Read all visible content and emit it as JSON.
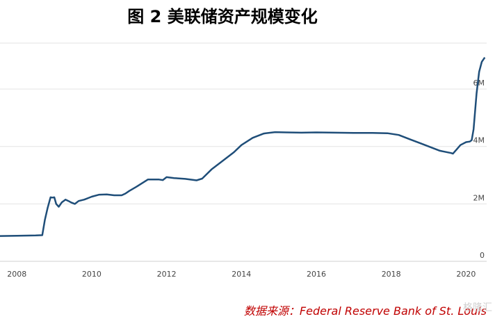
{
  "title": "图 2 美联储资产规模变化",
  "source": "数据来源：Federal Reserve Bank of St. Louis",
  "watermark": "格隆汇",
  "colors": {
    "line": "#1f4e79",
    "grid": "#e3e3e3",
    "axis_text": "#444444",
    "source_text": "#c00000"
  },
  "chart_data": {
    "type": "line",
    "title": "图 2 美联储资产规模变化",
    "xlabel": "",
    "ylabel": "",
    "xlim": [
      2007.55,
      2020.55
    ],
    "ylim": [
      0,
      7.6
    ],
    "x_ticks": [
      2008,
      2010,
      2012,
      2014,
      2016,
      2018,
      2020
    ],
    "x_tick_labels": [
      "2008",
      "2010",
      "2012",
      "2014",
      "2016",
      "2018",
      "2020"
    ],
    "y_ticks": [
      0,
      2,
      4,
      6
    ],
    "y_tick_labels": [
      "0",
      "2M",
      "4M",
      "6M"
    ],
    "grid": true,
    "series": [
      {
        "x": [
          2007.55,
          2008.0,
          2008.5,
          2008.68,
          2008.75,
          2008.82,
          2008.9,
          2008.95,
          2009.0,
          2009.05,
          2009.12,
          2009.2,
          2009.3,
          2009.38,
          2009.45,
          2009.55,
          2009.65,
          2009.8,
          2010.0,
          2010.2,
          2010.4,
          2010.6,
          2010.8,
          2010.9,
          2011.0,
          2011.2,
          2011.5,
          2011.8,
          2011.9,
          2012.0,
          2012.2,
          2012.5,
          2012.8,
          2012.95,
          2013.2,
          2013.5,
          2013.8,
          2014.0,
          2014.3,
          2014.6,
          2014.9,
          2015.2,
          2015.6,
          2016.0,
          2016.5,
          2017.0,
          2017.5,
          2017.9,
          2018.2,
          2018.5,
          2018.8,
          2019.0,
          2019.3,
          2019.6,
          2019.65,
          2019.75,
          2019.85,
          2020.0,
          2020.1,
          2020.15,
          2020.2,
          2020.28,
          2020.35,
          2020.42,
          2020.5
        ],
        "y": [
          0.88,
          0.89,
          0.9,
          0.91,
          1.45,
          1.85,
          2.23,
          2.22,
          2.23,
          2.0,
          1.9,
          2.05,
          2.15,
          2.1,
          2.05,
          2.0,
          2.1,
          2.15,
          2.25,
          2.32,
          2.33,
          2.3,
          2.3,
          2.36,
          2.45,
          2.6,
          2.85,
          2.85,
          2.83,
          2.93,
          2.9,
          2.87,
          2.82,
          2.88,
          3.2,
          3.5,
          3.8,
          4.05,
          4.3,
          4.45,
          4.5,
          4.49,
          4.48,
          4.49,
          4.48,
          4.47,
          4.47,
          4.46,
          4.4,
          4.25,
          4.1,
          4.0,
          3.85,
          3.77,
          3.75,
          3.9,
          4.05,
          4.15,
          4.17,
          4.22,
          4.6,
          5.85,
          6.6,
          6.95,
          7.1
        ]
      }
    ]
  }
}
